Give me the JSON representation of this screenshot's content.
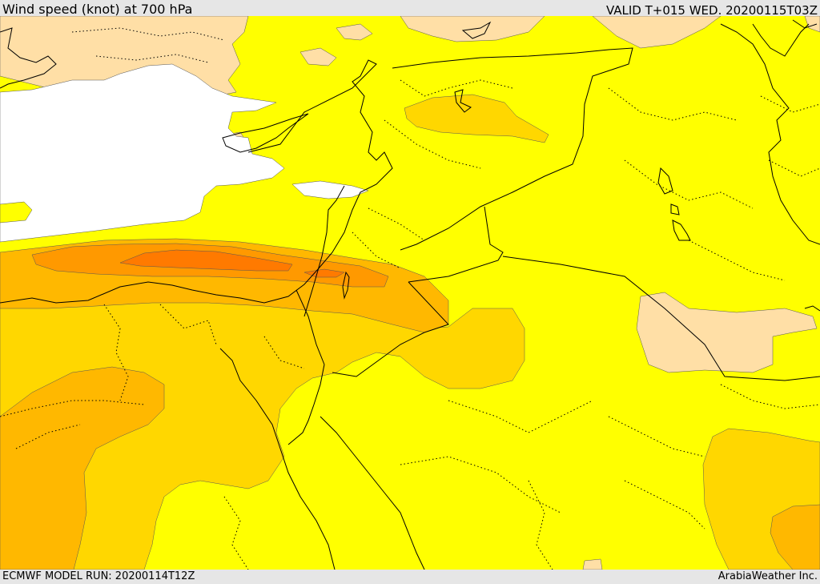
{
  "header": {
    "title": "Wind speed (knot) at 700 hPa",
    "valid_time": "VALID T+015 WED. 20200115T03Z"
  },
  "footer": {
    "model_run": "ECMWF MODEL RUN: 20200114T12Z",
    "credit": "ArabiaWeather Inc."
  },
  "colors": {
    "sea": "#ffffff",
    "lightest": "#ffdfa6",
    "yellow": "#ffff00",
    "gold": "#ffd700",
    "amber": "#ffb800",
    "orange": "#ff9900",
    "dark_orange": "#ff7a00",
    "border": "#000000"
  }
}
